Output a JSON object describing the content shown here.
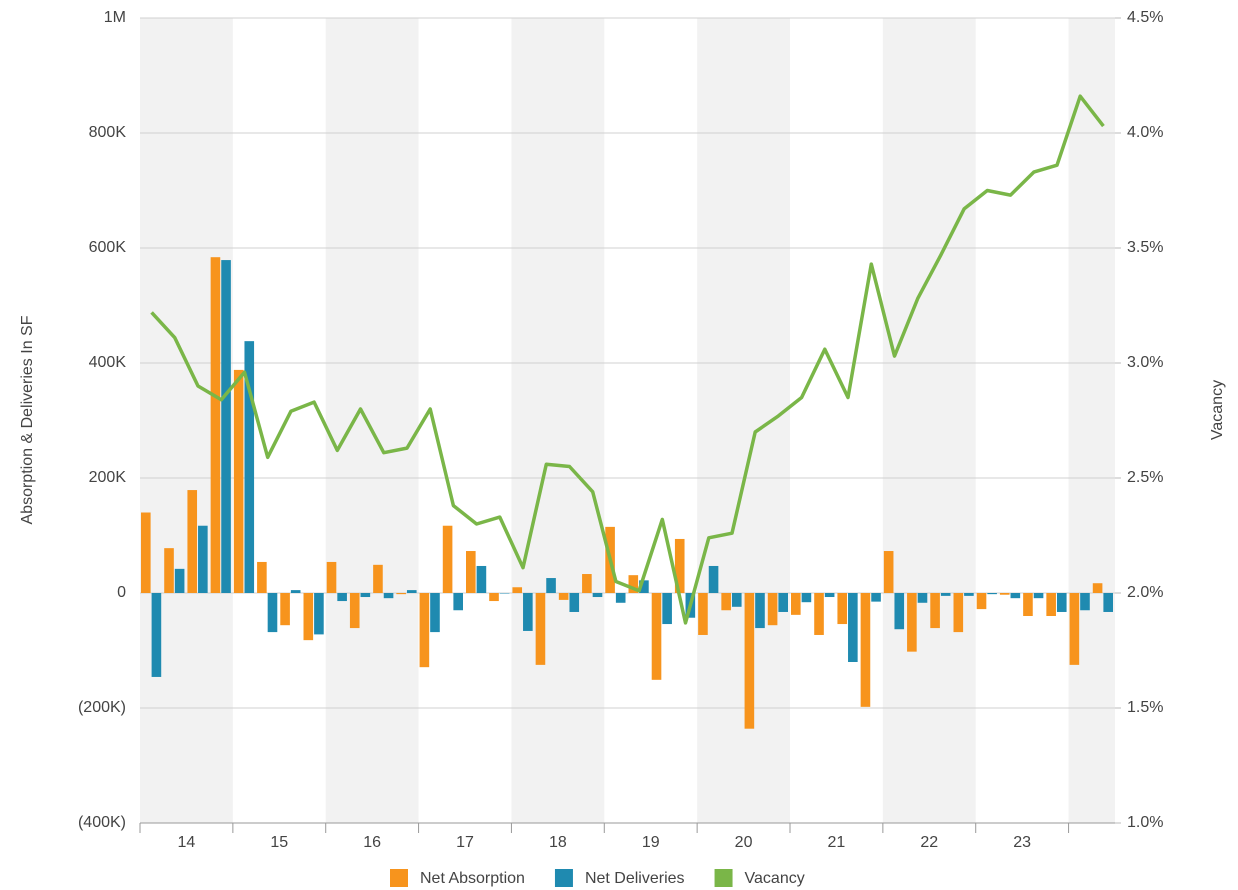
{
  "chart_data": {
    "type": "bar-line",
    "y_label": "Absorption & Deliveries In SF",
    "y2_label": "Vacancy",
    "x_labels": [
      "14",
      "15",
      "16",
      "17",
      "18",
      "19",
      "20",
      "21",
      "22",
      "23"
    ],
    "quarters_per_label": 4,
    "ylim": [
      -400000,
      1000000
    ],
    "yticks": [
      {
        "value": 1000000,
        "label": "1M"
      },
      {
        "value": 800000,
        "label": "800K"
      },
      {
        "value": 600000,
        "label": "600K"
      },
      {
        "value": 400000,
        "label": "400K"
      },
      {
        "value": 200000,
        "label": "200K"
      },
      0,
      {
        "value": -200000,
        "label": "(200K)"
      },
      {
        "value": -400000,
        "label": "(400K)"
      }
    ],
    "y2lim": [
      1.0,
      4.5
    ],
    "y2ticks": [
      {
        "value": 4.5,
        "label": "4.5%"
      },
      {
        "value": 4.0,
        "label": "4.0%"
      },
      {
        "value": 3.5,
        "label": "3.5%"
      },
      {
        "value": 3.0,
        "label": "3.0%"
      },
      {
        "value": 2.5,
        "label": "2.5%"
      },
      {
        "value": 2.0,
        "label": "2.0%"
      },
      {
        "value": 1.5,
        "label": "1.5%"
      },
      {
        "value": 1.0,
        "label": "1.0%"
      }
    ],
    "grid": true,
    "series": [
      {
        "name": "Net Absorption",
        "type": "bar",
        "color": "#f7941d",
        "values": [
          140000,
          78000,
          179000,
          584000,
          388000,
          54000,
          -56000,
          -82000,
          54000,
          -61000,
          49000,
          -2000,
          -129000,
          117000,
          73000,
          -14000,
          10000,
          -125000,
          -12000,
          33000,
          115000,
          31000,
          -151000,
          94000,
          -73000,
          -30000,
          -236000,
          -56000,
          -38000,
          -73000,
          -54000,
          -198000,
          73000,
          -102000,
          -61000,
          -68000,
          -28000,
          -3000,
          -40000,
          -40000,
          -125000,
          17000
        ]
      },
      {
        "name": "Net Deliveries",
        "type": "bar",
        "color": "#1f8ab0",
        "values": [
          -146000,
          42000,
          117000,
          579000,
          438000,
          -68000,
          5000,
          -72000,
          -14000,
          -7000,
          -9000,
          5000,
          -68000,
          -30000,
          47000,
          0,
          -66000,
          26000,
          -33000,
          -7000,
          -17000,
          22000,
          -54000,
          -43000,
          47000,
          -24000,
          -61000,
          -33000,
          -16000,
          -7000,
          -120000,
          -15000,
          -63000,
          -17000,
          -5000,
          -5000,
          -2000,
          -9000,
          -9000,
          -33000,
          -30000,
          -33000
        ]
      },
      {
        "name": "Vacancy",
        "type": "line",
        "axis": "y2",
        "color": "#7ab648",
        "values": [
          3.22,
          3.11,
          2.9,
          2.84,
          2.96,
          2.59,
          2.79,
          2.83,
          2.62,
          2.8,
          2.61,
          2.63,
          2.8,
          2.38,
          2.3,
          2.33,
          2.11,
          2.56,
          2.55,
          2.44,
          2.05,
          2.01,
          2.32,
          1.87,
          2.24,
          2.26,
          2.7,
          2.77,
          2.85,
          3.06,
          2.85,
          3.43,
          3.03,
          3.28,
          3.47,
          3.67,
          3.75,
          3.73,
          3.83,
          3.86,
          4.16,
          4.03
        ]
      }
    ]
  }
}
